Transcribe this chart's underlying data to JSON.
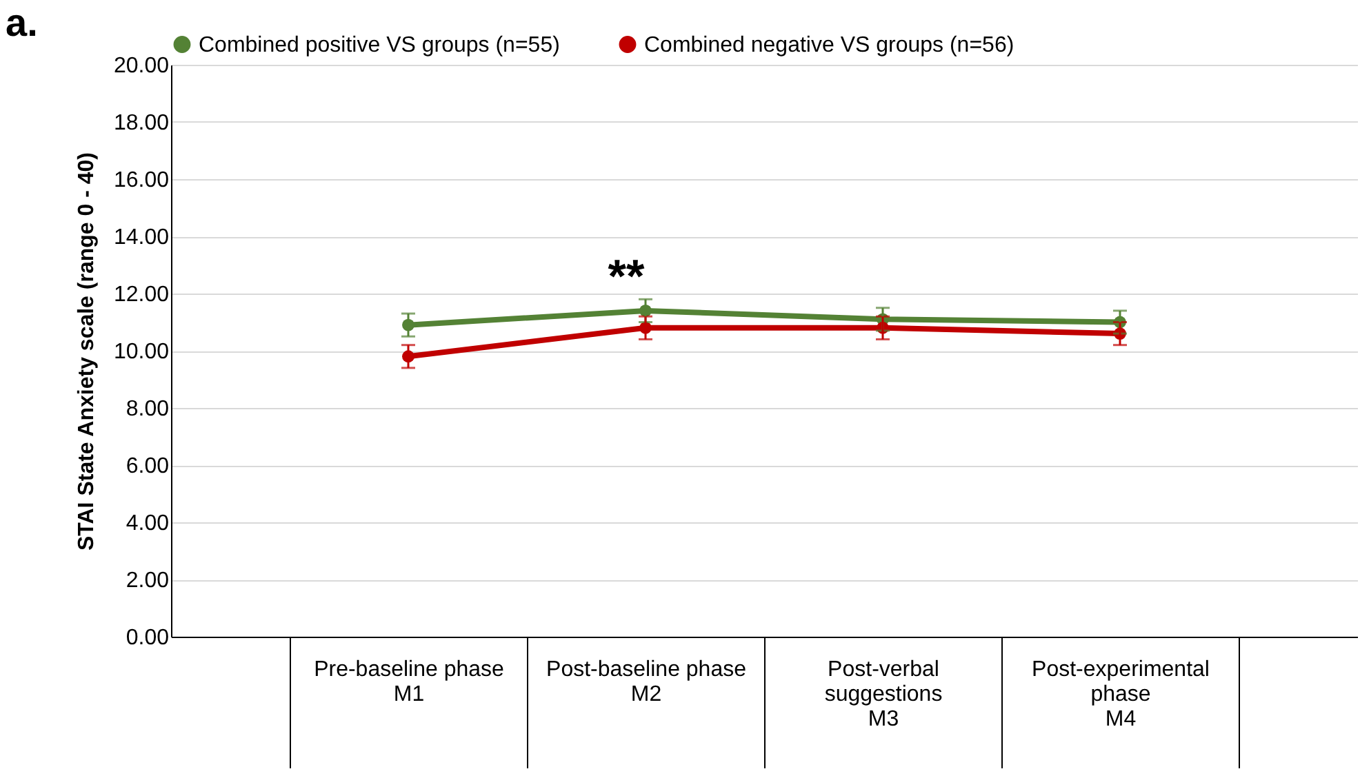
{
  "chart_data": {
    "type": "line",
    "title": "a.",
    "ylabel": "STAI State Anxiety scale (range 0 - 40)",
    "categories": [
      "Pre-baseline phase\n\nM1",
      "Post-baseline phase\n\nM2",
      "Post-verbal\nsuggestions\n\nM3",
      "Post-experimental\nphase\n\nM4"
    ],
    "series": [
      {
        "name": "Combined positive VS groups (n=55)",
        "color": "#548235",
        "values": [
          10.9,
          11.4,
          11.1,
          11.0
        ],
        "errors": [
          0.4,
          0.4,
          0.4,
          0.4
        ]
      },
      {
        "name": "Combined negative VS groups (n=56)",
        "color": "#c00000",
        "values": [
          9.8,
          10.8,
          10.8,
          10.6
        ],
        "errors": [
          0.4,
          0.4,
          0.4,
          0.4
        ]
      }
    ],
    "ylim": [
      0,
      20
    ],
    "yticks": [
      {
        "value": 0,
        "label": "0.00"
      },
      {
        "value": 2,
        "label": "2.00"
      },
      {
        "value": 4,
        "label": "4.00"
      },
      {
        "value": 6,
        "label": "6.00"
      },
      {
        "value": 8,
        "label": "8.00"
      },
      {
        "value": 10,
        "label": "10.00"
      },
      {
        "value": 12,
        "label": "12.00"
      },
      {
        "value": 14,
        "label": "14.00"
      },
      {
        "value": 16,
        "label": "16.00"
      },
      {
        "value": 18,
        "label": "18.00"
      },
      {
        "value": 20,
        "label": "20.00"
      }
    ],
    "annotations": [
      "**"
    ],
    "grid": "y",
    "legend": "top",
    "marker": "circle",
    "line_style": "solid"
  }
}
